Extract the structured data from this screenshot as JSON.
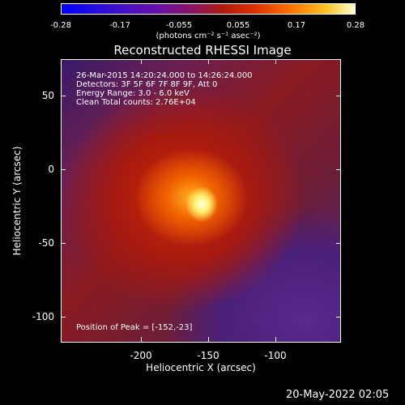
{
  "chart_data": {
    "type": "heatmap",
    "title": "Reconstructed RHESSI Image",
    "colorbar": {
      "ticks": [
        "-0.28",
        "-0.17",
        "-0.055",
        "0.055",
        "0.17",
        "0.28"
      ],
      "unit_label": "(photons cm⁻² s⁻¹ asec⁻²)",
      "range": [
        -0.28,
        0.28
      ]
    },
    "xlabel": "Heliocentric X (arcsec)",
    "ylabel": "Heliocentric Y (arcsec)",
    "x_ticks": [
      "-200",
      "-150",
      "-100"
    ],
    "y_ticks": [
      "50",
      "0",
      "-50",
      "-100"
    ],
    "xlim": [
      -247,
      -49
    ],
    "ylim": [
      -122,
      76
    ],
    "peak": {
      "x": -152,
      "y": -23
    },
    "annotations": [
      "26-Mar-2015 14:20:24.000 to 14:26:24.000",
      "Detectors: 3F 5F 6F 7F 8F 9F, Att 0",
      "Energy Range: 3.0 - 6.0 keV",
      "Clean     Total counts: 2.76E+04"
    ],
    "peak_label": "Position of Peak = [-152,-23]"
  },
  "footer_date": "20-May-2022 02:05",
  "colors": {
    "background": "#000000",
    "peak": "#ffffe0"
  }
}
